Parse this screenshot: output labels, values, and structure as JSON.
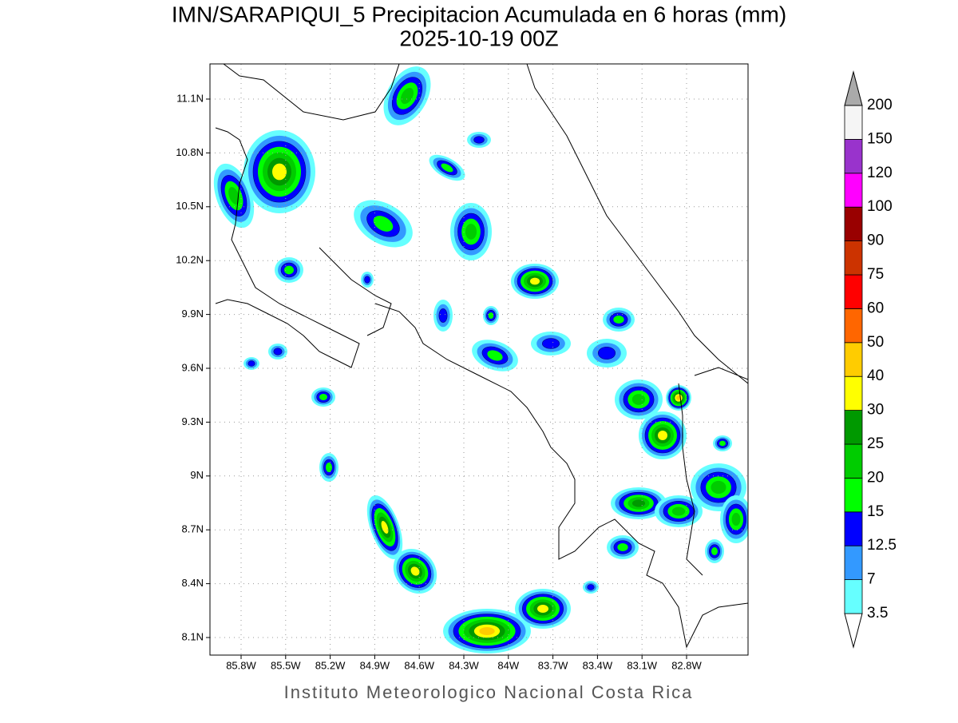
{
  "title": "IMN/SARAPIQUI_5 Precipitacion Acumulada en 6 horas (mm)",
  "subtitle": "2025-10-19 00Z",
  "map": {
    "lon_labels": [
      "85.8W",
      "85.5W",
      "85.2W",
      "84.9W",
      "84.6W",
      "84.3W",
      "84W",
      "83.7W",
      "83.4W",
      "83.1W",
      "82.8W"
    ],
    "lat_labels": [
      "11.1N",
      "10.8N",
      "10.5N",
      "10.2N",
      "9.9N",
      "9.6N",
      "9.3N",
      "9N",
      "8.7N",
      "8.4N",
      "8.1N"
    ]
  },
  "colorbar": {
    "levels": [
      3.5,
      7,
      12.5,
      15,
      20,
      25,
      30,
      40,
      50,
      60,
      75,
      90,
      100,
      120,
      150,
      200
    ],
    "colors": [
      "#66ffff",
      "#3399ff",
      "#0000ff",
      "#00ff00",
      "#00cc00",
      "#009900",
      "#ffff00",
      "#ffcc00",
      "#ff6600",
      "#ff0000",
      "#cc3300",
      "#990000",
      "#ff00ff",
      "#9933cc",
      "#f5f5f5"
    ],
    "under_color": "#ffffff",
    "over_color": "#aaaaaa"
  },
  "footer": "Instituto Meteorologico Nacional Costa Rica"
}
